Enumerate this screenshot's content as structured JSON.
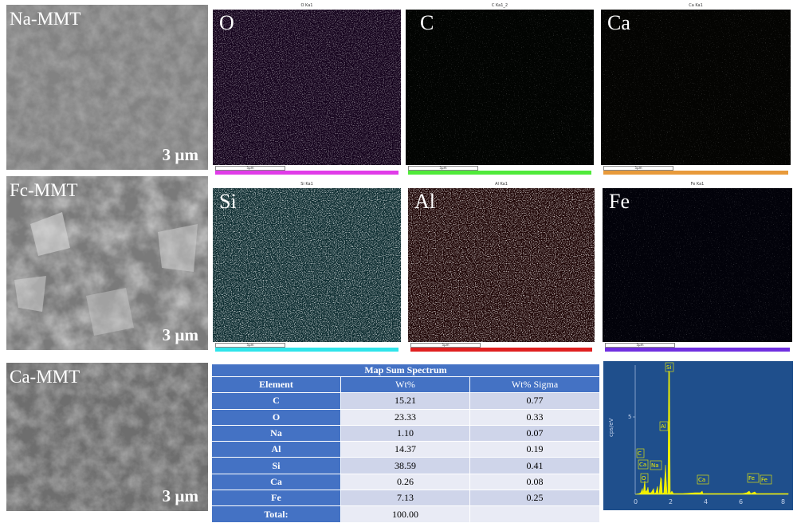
{
  "sem_panels": [
    {
      "label": "Na-MMT",
      "scale": "3 µm"
    },
    {
      "label": "Fc-MMT",
      "scale": "3 µm"
    },
    {
      "label": "Ca-MMT",
      "scale": "3 µm"
    }
  ],
  "maps": [
    {
      "label": "O",
      "header": "O Ka1",
      "scale_text": "5µm",
      "color": "#b020b8",
      "bar": "#e03ce8"
    },
    {
      "label": "C",
      "header": "C Ka1_2",
      "scale_text": "5µm",
      "color": "#2a8a3a",
      "bar": "#50ea3a"
    },
    {
      "label": "Ca",
      "header": "Ca Ka1",
      "scale_text": "5µm",
      "color": "#8a7a2a",
      "bar": "#e89a3a"
    },
    {
      "label": "Si",
      "header": "Si Ka1",
      "scale_text": "5µm",
      "color": "#30c0c8",
      "bar": "#30e4ea"
    },
    {
      "label": "Al",
      "header": "Al Ka1",
      "scale_text": "5µm",
      "color": "#c01818",
      "bar": "#e02020"
    },
    {
      "label": "Fe",
      "header": "Fe Ka1",
      "scale_text": "5µm",
      "color": "#3a28a0",
      "bar": "#7030e0"
    }
  ],
  "table": {
    "title": "Map Sum Spectrum",
    "headers": [
      "Element",
      "Wt%",
      "Wt% Sigma"
    ],
    "rows": [
      {
        "element": "C",
        "wt": "15.21",
        "sigma": "0.77"
      },
      {
        "element": "O",
        "wt": "23.33",
        "sigma": "0.33"
      },
      {
        "element": "Na",
        "wt": "1.10",
        "sigma": "0.07"
      },
      {
        "element": "Al",
        "wt": "14.37",
        "sigma": "0.19"
      },
      {
        "element": "Si",
        "wt": "38.59",
        "sigma": "0.41"
      },
      {
        "element": "Ca",
        "wt": "0.26",
        "sigma": "0.08"
      },
      {
        "element": "Fe",
        "wt": "7.13",
        "sigma": "0.25"
      }
    ],
    "total": {
      "element": "Total:",
      "wt": "100.00",
      "sigma": ""
    }
  },
  "spectrum": {
    "ylabel": "cps/eV",
    "y_tick": "5",
    "x_ticks": [
      "0",
      "2",
      "4",
      "6",
      "8"
    ],
    "peak_labels": [
      "Si",
      "Al",
      "C",
      "Ca",
      "Na",
      "O",
      "Ca",
      "Fe",
      "Fe"
    ],
    "color": "#f0f000"
  }
}
